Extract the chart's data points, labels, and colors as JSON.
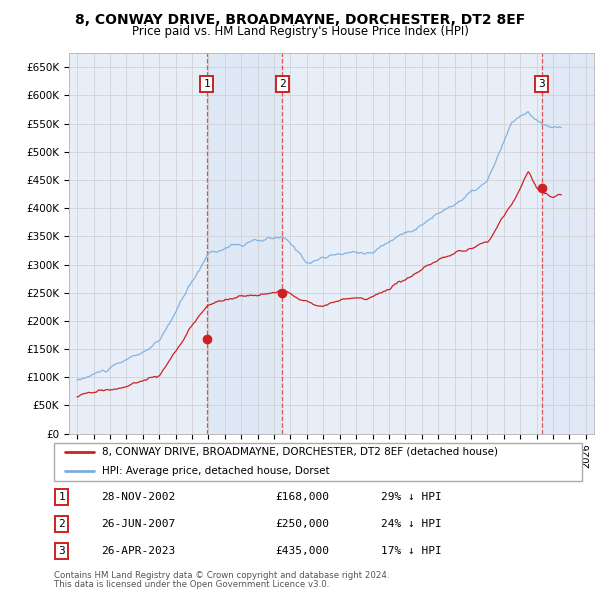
{
  "title": "8, CONWAY DRIVE, BROADMAYNE, DORCHESTER, DT2 8EF",
  "subtitle": "Price paid vs. HM Land Registry's House Price Index (HPI)",
  "legend_line1": "8, CONWAY DRIVE, BROADMAYNE, DORCHESTER, DT2 8EF (detached house)",
  "legend_line2": "HPI: Average price, detached house, Dorset",
  "footnote1": "Contains HM Land Registry data © Crown copyright and database right 2024.",
  "footnote2": "This data is licensed under the Open Government Licence v3.0.",
  "transactions": [
    {
      "num": 1,
      "date": "28-NOV-2002",
      "price": "£168,000",
      "hpi": "29% ↓ HPI",
      "year": 2002.9,
      "value": 168000
    },
    {
      "num": 2,
      "date": "26-JUN-2007",
      "price": "£250,000",
      "hpi": "24% ↓ HPI",
      "year": 2007.5,
      "value": 250000
    },
    {
      "num": 3,
      "date": "26-APR-2023",
      "price": "£435,000",
      "hpi": "17% ↓ HPI",
      "year": 2023.32,
      "value": 435000
    }
  ],
  "hpi_color": "#7aace0",
  "price_color": "#cc2222",
  "background_plot": "#e8eef8",
  "background_fig": "#ffffff",
  "grid_color": "#cccccc",
  "ylim": [
    0,
    675000
  ],
  "xlim_start": 1994.5,
  "xlim_end": 2026.5,
  "yticks": [
    0,
    50000,
    100000,
    150000,
    200000,
    250000,
    300000,
    350000,
    400000,
    450000,
    500000,
    550000,
    600000,
    650000
  ],
  "xticks": [
    1995,
    1996,
    1997,
    1998,
    1999,
    2000,
    2001,
    2002,
    2003,
    2004,
    2005,
    2006,
    2007,
    2008,
    2009,
    2010,
    2011,
    2012,
    2013,
    2014,
    2015,
    2016,
    2017,
    2018,
    2019,
    2020,
    2021,
    2022,
    2023,
    2024,
    2025,
    2026
  ]
}
